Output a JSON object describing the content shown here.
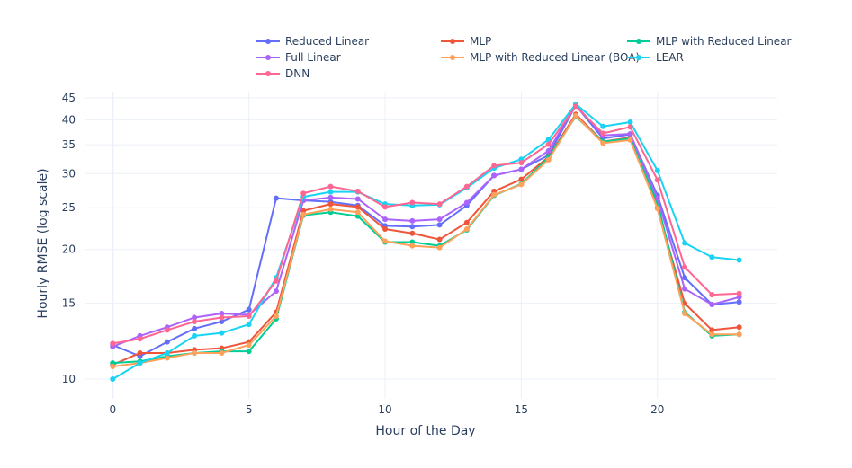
{
  "chart_data": {
    "type": "line",
    "title": "",
    "xlabel": "Hour of the Day",
    "ylabel": "Hourly RMSE (log scale)",
    "yscale": "log",
    "xlim": [
      -1,
      24.4
    ],
    "ylim": [
      9.0,
      46.5
    ],
    "xticks": [
      0,
      5,
      10,
      15,
      20
    ],
    "yticks": [
      10,
      15,
      20,
      25,
      30,
      35,
      40,
      45
    ],
    "legend_position": "top",
    "x": [
      0,
      1,
      2,
      3,
      4,
      5,
      6,
      7,
      8,
      9,
      10,
      11,
      12,
      13,
      14,
      15,
      16,
      17,
      18,
      19,
      20,
      21,
      22,
      23
    ],
    "series": [
      {
        "name": "Reduced Linear",
        "color": "#636efa",
        "values": [
          12.0,
          11.3,
          12.2,
          13.1,
          13.6,
          14.5,
          26.3,
          26.0,
          25.8,
          25.3,
          22.7,
          22.6,
          22.8,
          25.3,
          29.7,
          30.7,
          33.1,
          43.2,
          36.2,
          37.0,
          26.7,
          17.2,
          14.9,
          15.1
        ]
      },
      {
        "name": "MLP",
        "color": "#ef553b",
        "values": [
          10.8,
          11.5,
          11.5,
          11.7,
          11.8,
          12.2,
          14.3,
          24.6,
          25.5,
          25.1,
          22.3,
          21.8,
          21.1,
          23.1,
          27.3,
          29.1,
          32.8,
          41.2,
          35.6,
          36.4,
          25.0,
          15.0,
          13.0,
          13.2
        ]
      },
      {
        "name": "MLP with Reduced Linear",
        "color": "#00cc96",
        "values": [
          10.9,
          11.0,
          11.3,
          11.5,
          11.6,
          11.6,
          13.8,
          24.0,
          24.4,
          23.9,
          20.8,
          20.8,
          20.4,
          22.2,
          26.7,
          28.4,
          32.7,
          40.7,
          35.6,
          36.2,
          25.7,
          14.3,
          12.6,
          12.7
        ]
      },
      {
        "name": "Full Linear",
        "color": "#ab63fa",
        "values": [
          11.9,
          12.6,
          13.2,
          13.9,
          14.2,
          14.1,
          16.0,
          26.0,
          26.4,
          26.2,
          23.5,
          23.3,
          23.5,
          25.7,
          29.7,
          30.7,
          33.9,
          43.3,
          36.8,
          37.1,
          26.3,
          16.2,
          14.9,
          15.5
        ]
      },
      {
        "name": "MLP with Reduced Linear (BOA)",
        "color": "#ffa15a",
        "values": [
          10.7,
          10.9,
          11.2,
          11.5,
          11.5,
          12.0,
          14.0,
          24.1,
          24.8,
          24.4,
          20.9,
          20.4,
          20.2,
          22.3,
          26.8,
          28.3,
          32.3,
          40.9,
          35.3,
          35.9,
          24.9,
          14.2,
          12.7,
          12.7
        ]
      },
      {
        "name": "LEAR",
        "color": "#19d3f3",
        "values": [
          10.0,
          10.9,
          11.5,
          12.6,
          12.8,
          13.4,
          17.2,
          26.5,
          27.2,
          27.2,
          25.5,
          25.3,
          25.4,
          27.8,
          30.9,
          32.4,
          36.0,
          43.5,
          38.6,
          39.5,
          30.5,
          20.7,
          19.2,
          18.9
        ]
      },
      {
        "name": "DNN",
        "color": "#ff6692",
        "values": [
          12.1,
          12.4,
          13.0,
          13.6,
          13.9,
          14.0,
          16.9,
          27.0,
          28.0,
          27.3,
          25.1,
          25.7,
          25.5,
          28.0,
          31.3,
          31.8,
          35.1,
          43.0,
          37.2,
          38.5,
          29.0,
          18.2,
          15.7,
          15.8
        ]
      }
    ]
  }
}
